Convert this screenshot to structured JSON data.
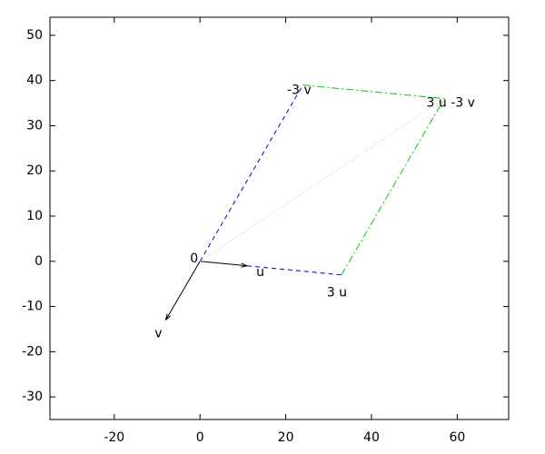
{
  "chart_data": {
    "type": "vector",
    "xlim": [
      -35,
      72
    ],
    "ylim": [
      -35,
      54
    ],
    "xticks": [
      -20,
      0,
      20,
      40,
      60
    ],
    "yticks": [
      -30,
      -20,
      -10,
      0,
      10,
      20,
      30,
      40,
      50
    ],
    "segments": [
      {
        "x": [
          0,
          11
        ],
        "y": [
          0,
          -1
        ],
        "color": "#000000",
        "style": "solid",
        "arrow": true
      },
      {
        "x": [
          0,
          -8
        ],
        "y": [
          0,
          -13
        ],
        "color": "#000000",
        "style": "solid",
        "arrow": true
      },
      {
        "x": [
          11,
          33
        ],
        "y": [
          -1,
          -3
        ],
        "color": "#0000cc",
        "style": "dashed",
        "arrow": false
      },
      {
        "x": [
          0,
          24
        ],
        "y": [
          0,
          39
        ],
        "color": "#0000cc",
        "style": "dashed",
        "arrow": false
      },
      {
        "x": [
          24,
          57
        ],
        "y": [
          39,
          36
        ],
        "color": "#00cc00",
        "style": "dashdot",
        "arrow": false
      },
      {
        "x": [
          33,
          57
        ],
        "y": [
          -3,
          36
        ],
        "color": "#00cc00",
        "style": "dashdot",
        "arrow": false
      },
      {
        "x": [
          0,
          57
        ],
        "y": [
          0,
          36
        ],
        "color": "#e0a0e0",
        "style": "dotted",
        "arrow": false
      }
    ],
    "points": [
      {
        "label": "0",
        "x": 0,
        "y": 0
      },
      {
        "label": "u",
        "x": 11,
        "y": -1
      },
      {
        "label": "v",
        "x": -8,
        "y": -13
      },
      {
        "label": "3 u",
        "x": 33,
        "y": -3
      },
      {
        "label": "-3 v",
        "x": 24,
        "y": 39
      },
      {
        "label": "3 u -3 v",
        "x": 57,
        "y": 36
      }
    ]
  }
}
